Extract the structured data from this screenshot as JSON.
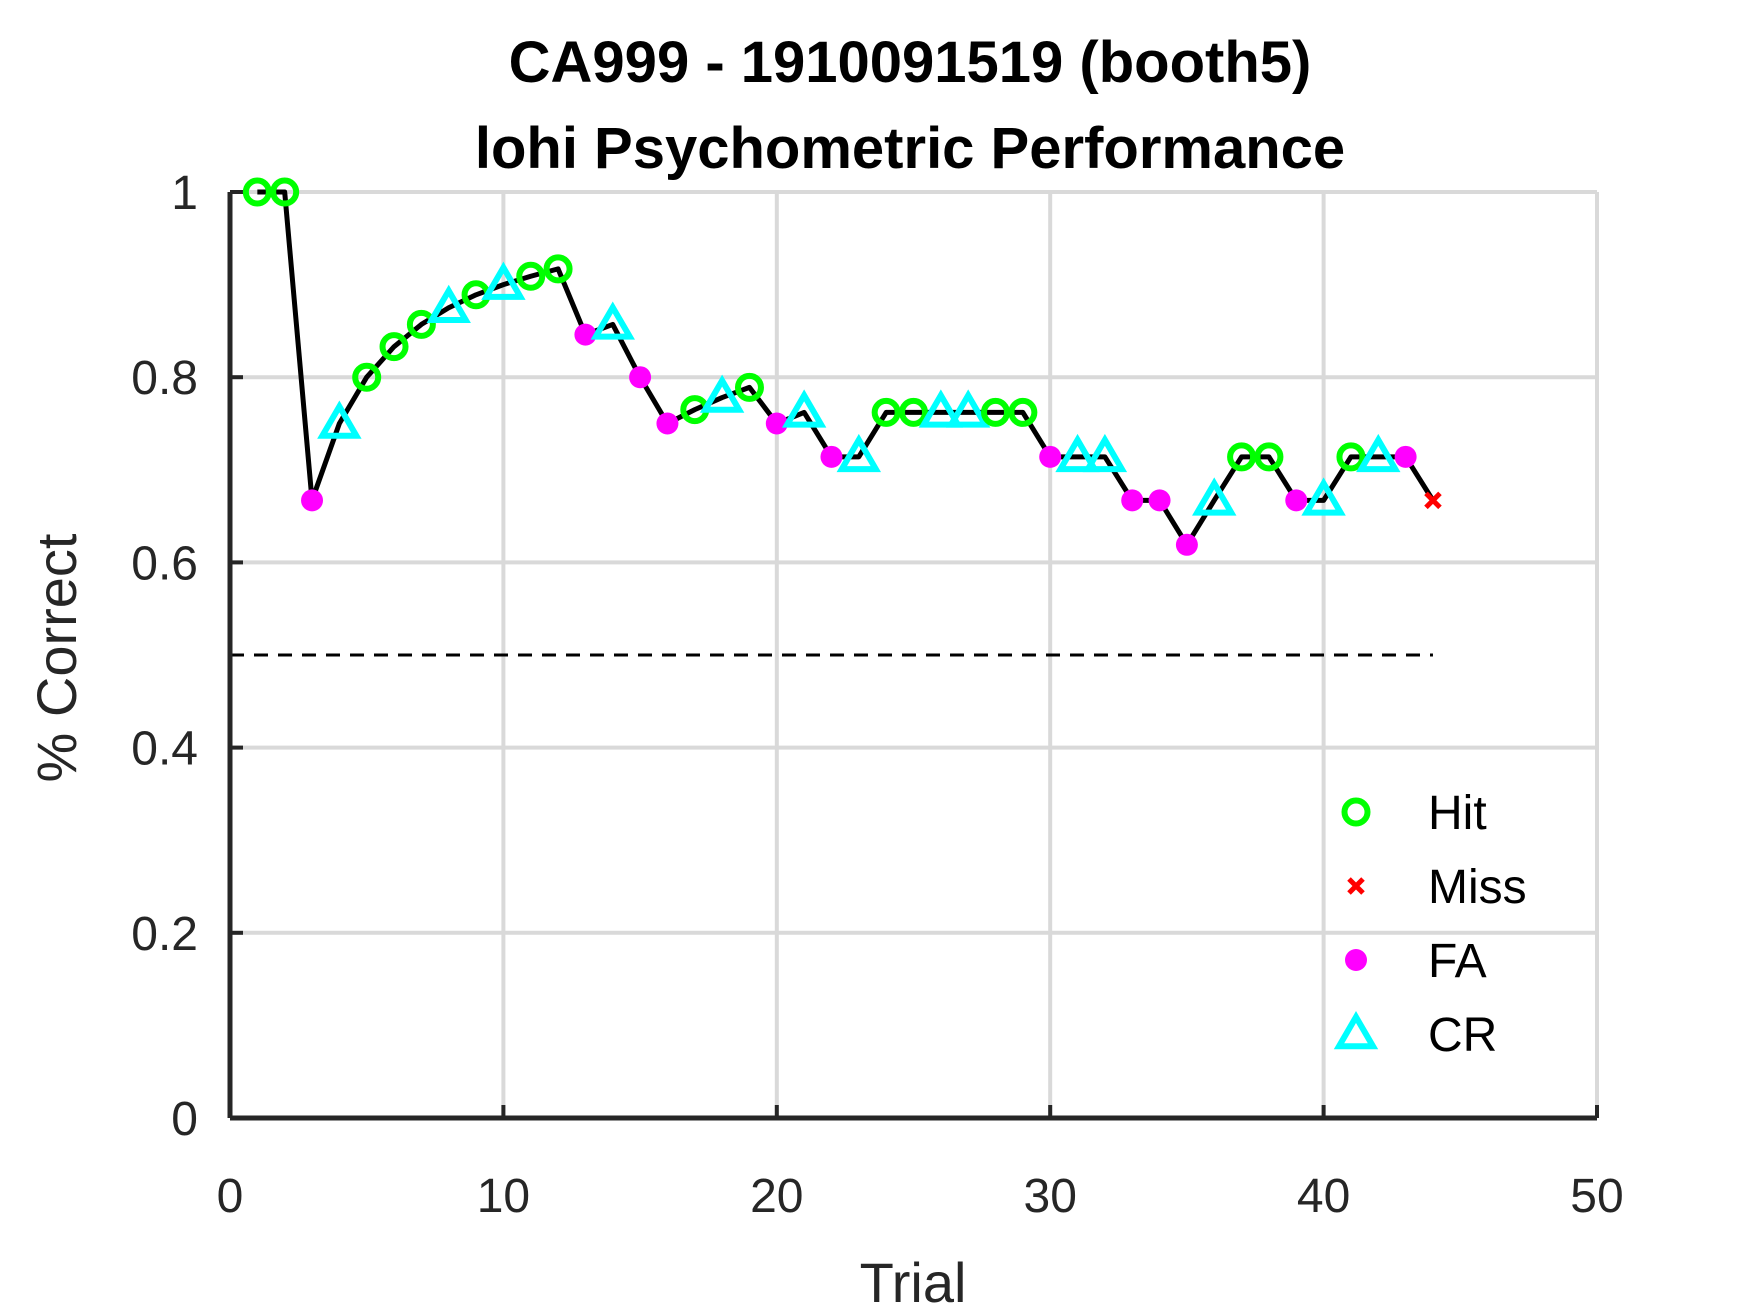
{
  "chart_data": {
    "type": "line",
    "title": "CA999 - 1910091519 (booth5)",
    "subtitle": "lohi Psychometric Performance",
    "xlabel": "Trial",
    "ylabel": "% Correct",
    "xlim": [
      0,
      50
    ],
    "ylim": [
      0,
      1
    ],
    "xticks": [
      "0",
      "10",
      "20",
      "30",
      "40",
      "50"
    ],
    "yticks": [
      "0",
      "0.2",
      "0.4",
      "0.6",
      "0.8",
      "1"
    ],
    "grid": true,
    "chance_line": {
      "y": 0.5,
      "x_range": [
        0,
        44
      ]
    },
    "legend": {
      "position": "bottom-right",
      "entries": [
        {
          "label": "Hit",
          "marker": "circle",
          "color": "#00ff00"
        },
        {
          "label": "Miss",
          "marker": "x",
          "color": "#ff0000"
        },
        {
          "label": "FA",
          "marker": "dot",
          "color": "#ff00ff"
        },
        {
          "label": "CR",
          "marker": "triangle",
          "color": "#00ffff"
        }
      ]
    },
    "trials": [
      {
        "x": 1,
        "y": 1.0,
        "outcome": "Hit"
      },
      {
        "x": 2,
        "y": 1.0,
        "outcome": "Hit"
      },
      {
        "x": 3,
        "y": 0.667,
        "outcome": "FA"
      },
      {
        "x": 4,
        "y": 0.75,
        "outcome": "CR"
      },
      {
        "x": 5,
        "y": 0.8,
        "outcome": "Hit"
      },
      {
        "x": 6,
        "y": 0.833,
        "outcome": "Hit"
      },
      {
        "x": 7,
        "y": 0.857,
        "outcome": "Hit"
      },
      {
        "x": 8,
        "y": 0.875,
        "outcome": "CR"
      },
      {
        "x": 9,
        "y": 0.889,
        "outcome": "Hit"
      },
      {
        "x": 10,
        "y": 0.9,
        "outcome": "CR"
      },
      {
        "x": 11,
        "y": 0.909,
        "outcome": "Hit"
      },
      {
        "x": 12,
        "y": 0.917,
        "outcome": "Hit"
      },
      {
        "x": 13,
        "y": 0.846,
        "outcome": "FA"
      },
      {
        "x": 14,
        "y": 0.857,
        "outcome": "CR"
      },
      {
        "x": 15,
        "y": 0.8,
        "outcome": "FA"
      },
      {
        "x": 16,
        "y": 0.75,
        "outcome": "FA"
      },
      {
        "x": 17,
        "y": 0.765,
        "outcome": "Hit"
      },
      {
        "x": 18,
        "y": 0.778,
        "outcome": "CR"
      },
      {
        "x": 19,
        "y": 0.789,
        "outcome": "Hit"
      },
      {
        "x": 20,
        "y": 0.75,
        "outcome": "FA"
      },
      {
        "x": 21,
        "y": 0.762,
        "outcome": "CR"
      },
      {
        "x": 22,
        "y": 0.714,
        "outcome": "FA"
      },
      {
        "x": 23,
        "y": 0.714,
        "outcome": "CR"
      },
      {
        "x": 24,
        "y": 0.762,
        "outcome": "Hit"
      },
      {
        "x": 25,
        "y": 0.762,
        "outcome": "Hit"
      },
      {
        "x": 26,
        "y": 0.762,
        "outcome": "CR"
      },
      {
        "x": 27,
        "y": 0.762,
        "outcome": "CR"
      },
      {
        "x": 28,
        "y": 0.762,
        "outcome": "Hit"
      },
      {
        "x": 29,
        "y": 0.762,
        "outcome": "Hit"
      },
      {
        "x": 30,
        "y": 0.714,
        "outcome": "FA"
      },
      {
        "x": 31,
        "y": 0.714,
        "outcome": "CR"
      },
      {
        "x": 32,
        "y": 0.714,
        "outcome": "CR"
      },
      {
        "x": 33,
        "y": 0.667,
        "outcome": "FA"
      },
      {
        "x": 34,
        "y": 0.667,
        "outcome": "FA"
      },
      {
        "x": 35,
        "y": 0.619,
        "outcome": "FA"
      },
      {
        "x": 36,
        "y": 0.667,
        "outcome": "CR"
      },
      {
        "x": 37,
        "y": 0.714,
        "outcome": "Hit"
      },
      {
        "x": 38,
        "y": 0.714,
        "outcome": "Hit"
      },
      {
        "x": 39,
        "y": 0.667,
        "outcome": "FA"
      },
      {
        "x": 40,
        "y": 0.667,
        "outcome": "CR"
      },
      {
        "x": 41,
        "y": 0.714,
        "outcome": "Hit"
      },
      {
        "x": 42,
        "y": 0.714,
        "outcome": "CR"
      },
      {
        "x": 43,
        "y": 0.714,
        "outcome": "FA"
      },
      {
        "x": 44,
        "y": 0.667,
        "outcome": "Miss"
      }
    ]
  }
}
